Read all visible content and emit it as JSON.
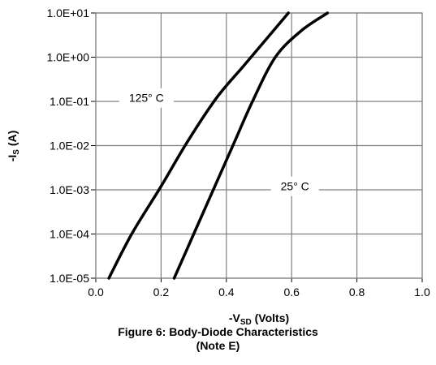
{
  "chart_data": {
    "type": "line",
    "title": "",
    "xlabel_prefix": "-V",
    "xlabel_sub": "SD",
    "xlabel_suffix": " (Volts)",
    "ylabel_prefix": "-I",
    "ylabel_sub": "S",
    "ylabel_suffix": " (A)",
    "xlim": [
      0.0,
      1.0
    ],
    "ylim": [
      1e-05,
      10
    ],
    "yscale": "log",
    "grid": true,
    "x_ticks": [
      "0.0",
      "0.2",
      "0.4",
      "0.6",
      "0.8",
      "1.0"
    ],
    "y_ticks": [
      "1.0E-05",
      "1.0E-04",
      "1.0E-03",
      "1.0E-02",
      "1.0E-01",
      "1.0E+00",
      "1.0E+01"
    ],
    "series": [
      {
        "name": "125° C",
        "x": [
          0.04,
          0.11,
          0.2,
          0.28,
          0.37,
          0.45,
          0.51,
          0.59
        ],
        "y": [
          1e-05,
          0.0001,
          0.0012,
          0.012,
          0.12,
          0.6,
          2.0,
          10
        ]
      },
      {
        "name": "25° C",
        "x": [
          0.24,
          0.3,
          0.36,
          0.42,
          0.48,
          0.55,
          0.63,
          0.71
        ],
        "y": [
          1e-05,
          0.0001,
          0.001,
          0.01,
          0.1,
          1.0,
          4.0,
          10
        ]
      }
    ],
    "annotations": [
      {
        "text": "125°  C",
        "x": 0.155,
        "y": 0.12
      },
      {
        "text": "25°  C",
        "x": 0.61,
        "y": 0.0012
      }
    ]
  },
  "caption": {
    "line1": "Figure 6: Body-Diode Characteristics",
    "line2": "(Note E)"
  }
}
